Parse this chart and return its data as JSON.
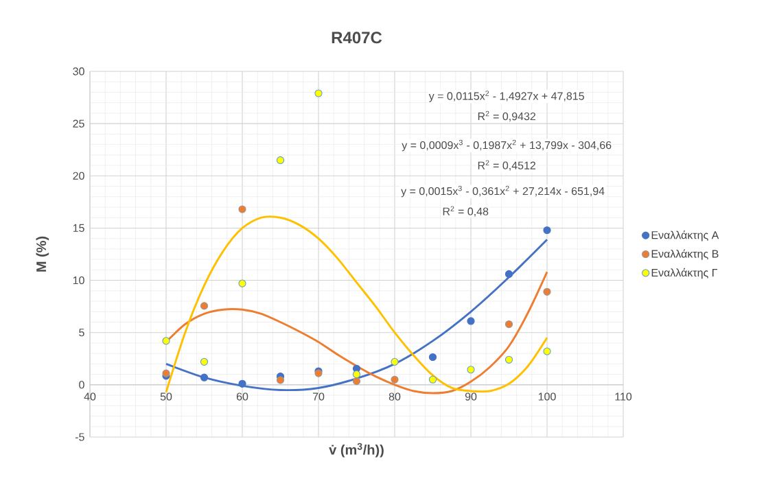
{
  "chart_data": {
    "type": "scatter",
    "title": "R407C",
    "xlabel": "v̇ (m$^{3}$/h))",
    "ylabel": "M (%)",
    "x": [
      50,
      55,
      60,
      65,
      70,
      75,
      80,
      85,
      90,
      95,
      100
    ],
    "xlim": [
      40,
      110
    ],
    "xticks": [
      40,
      50,
      60,
      70,
      80,
      90,
      100,
      110
    ],
    "ylim": [
      -5,
      30
    ],
    "yticks": [
      -5,
      0,
      5,
      10,
      15,
      20,
      25,
      30
    ],
    "grid": true,
    "legend": "right",
    "series": [
      {
        "name": "Εναλλάκτης Α",
        "marker": "circle",
        "color": "#4472c4",
        "values": [
          0.85,
          0.7,
          0.1,
          0.8,
          1.3,
          1.55,
          null,
          2.65,
          6.1,
          10.6,
          14.8
        ]
      },
      {
        "name": "Εναλλάκτης Β",
        "marker": "circle",
        "color": "#ed7d31",
        "values": [
          1.1,
          7.55,
          16.8,
          0.45,
          1.1,
          0.35,
          0.5,
          null,
          null,
          5.8,
          8.9
        ]
      },
      {
        "name": "Εναλλάκτης Γ",
        "marker": "circle",
        "color": "#ffff00",
        "values": [
          4.2,
          2.2,
          9.7,
          21.5,
          27.9,
          1.0,
          2.2,
          0.5,
          1.45,
          2.4,
          3.2
        ]
      },
      {
        "type": "line",
        "marker": "none",
        "color": "#4472c4",
        "x": [
          50,
          55,
          60,
          65,
          70,
          75,
          80,
          85,
          90,
          95,
          100
        ],
        "values": [
          2.0,
          0.7,
          -0.1,
          -0.5,
          -0.3,
          0.6,
          2.0,
          4.2,
          7.0,
          10.3,
          13.9
        ]
      },
      {
        "type": "line",
        "marker": "none",
        "color": "#ed7d31",
        "x": [
          50,
          52.5,
          55,
          57.5,
          60,
          62.5,
          65,
          67.5,
          70,
          72.5,
          75,
          77.5,
          80,
          82.5,
          85,
          87.5,
          90,
          92.5,
          95,
          97.5,
          100
        ],
        "values": [
          4.1,
          5.8,
          6.8,
          7.2,
          7.2,
          6.8,
          6.0,
          5.1,
          4.1,
          2.9,
          1.8,
          0.8,
          0.0,
          -0.6,
          -0.8,
          -0.6,
          0.3,
          1.7,
          3.7,
          6.9,
          10.8
        ]
      },
      {
        "type": "line",
        "marker": "none",
        "color": "#ffc000",
        "x": [
          50,
          52.5,
          55,
          57.5,
          60,
          62.5,
          65,
          67.5,
          70,
          72.5,
          75,
          77.5,
          80,
          82.5,
          85,
          87.5,
          90,
          92.5,
          95,
          97.5,
          100
        ],
        "values": [
          -0.7,
          5.0,
          9.5,
          12.8,
          15.0,
          16.0,
          16.0,
          15.3,
          14.0,
          12.1,
          9.8,
          7.5,
          5.0,
          2.8,
          0.9,
          -0.3,
          -0.6,
          -0.6,
          0.1,
          1.8,
          4.5
        ]
      }
    ],
    "annotations": [
      "y = 0,0115x$^{2}$ - 1,4927x + 47,815",
      "R$^{2}$ = 0,9432",
      "y = 0,0009x$^{3}$ - 0,1987x$^{2}$ + 13,799x - 304,66",
      "R$^{2}$ = 0,4512",
      "y = 0,0015x$^{3}$ - 0,361x$^{2}$ + 27,214x - 651,94",
      "R$^{2}$ = 0,48"
    ]
  }
}
